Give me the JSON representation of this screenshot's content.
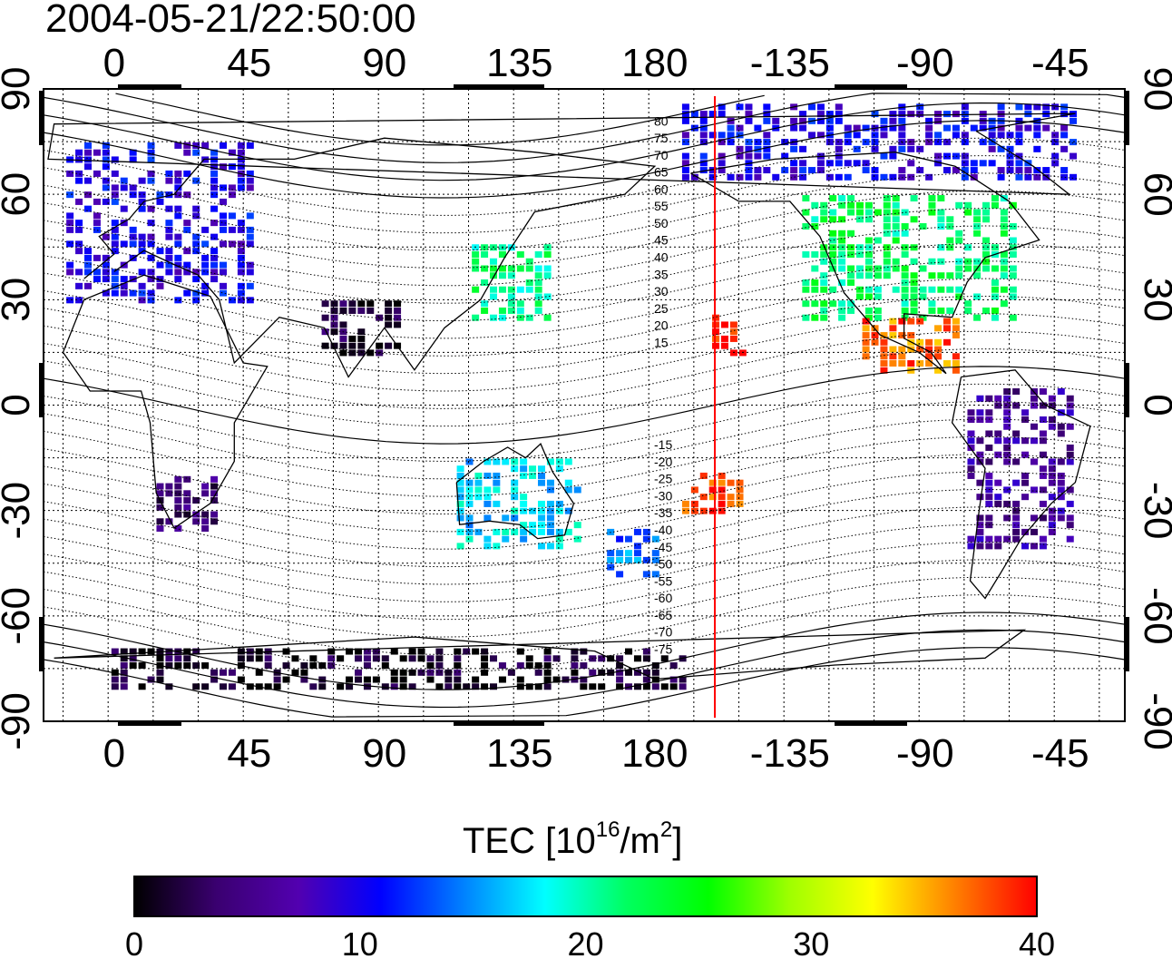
{
  "timestamp": "2004-05-21/22:50:00",
  "longitude_ticks": [
    "0",
    "45",
    "90",
    "135",
    "180",
    "-135",
    "-90",
    "-45"
  ],
  "latitude_ticks": [
    "90",
    "60",
    "30",
    "0",
    "-30",
    "-60",
    "-90"
  ],
  "magnetic_lat_labels": [
    "80",
    "75",
    "70",
    "65",
    "60",
    "55",
    "50",
    "45",
    "40",
    "35",
    "30",
    "25",
    "20",
    "15",
    "-15",
    "-20",
    "-25",
    "-30",
    "-35",
    "-40",
    "-45",
    "-50",
    "-55",
    "-60",
    "-65",
    "-70",
    "-75"
  ],
  "colorbar": {
    "title_prefix": "TEC  [10",
    "title_exp1": "16",
    "title_mid": "/m",
    "title_exp2": "2",
    "title_suffix": "]",
    "ticks": [
      "0",
      "10",
      "20",
      "30",
      "40"
    ],
    "range": [
      0,
      40
    ],
    "stops": [
      "#000000",
      "#3a0070",
      "#5200b0",
      "#0000ff",
      "#0080ff",
      "#00ffff",
      "#00ff60",
      "#00ff00",
      "#a0ff00",
      "#ffff00",
      "#ff8000",
      "#ff0000"
    ]
  },
  "terminator_longitude": -160,
  "colors": {
    "terminator": "#ff0000",
    "map_line": "#000000",
    "grid": "#000000"
  },
  "tec_regions": [
    {
      "name": "europe",
      "lon": [
        -15,
        45
      ],
      "lat": [
        30,
        75
      ],
      "tec": 10
    },
    {
      "name": "north-america",
      "lon": [
        -130,
        -60
      ],
      "lat": [
        25,
        60
      ],
      "tec": 22
    },
    {
      "name": "central-america",
      "lon": [
        -110,
        -80
      ],
      "lat": [
        10,
        25
      ],
      "tec": 37
    },
    {
      "name": "south-america",
      "lon": [
        -75,
        -40
      ],
      "lat": [
        -40,
        5
      ],
      "tec": 6
    },
    {
      "name": "east-asia",
      "lon": [
        120,
        145
      ],
      "lat": [
        25,
        45
      ],
      "tec": 21
    },
    {
      "name": "australia",
      "lon": [
        115,
        155
      ],
      "lat": [
        -40,
        -15
      ],
      "tec": 17
    },
    {
      "name": "hawaii",
      "lon": [
        -160,
        -150
      ],
      "lat": [
        15,
        25
      ],
      "tec": 40
    },
    {
      "name": "india",
      "lon": [
        70,
        95
      ],
      "lat": [
        15,
        30
      ],
      "tec": 2
    },
    {
      "name": "africa-south",
      "lon": [
        15,
        35
      ],
      "lat": [
        -35,
        -20
      ],
      "tec": 4
    },
    {
      "name": "antarctica",
      "lon": [
        0,
        190
      ],
      "lat": [
        -80,
        -70
      ],
      "tec": 1
    },
    {
      "name": "arctic-north-america",
      "lon": [
        -170,
        -40
      ],
      "lat": [
        65,
        85
      ],
      "tec": 10
    },
    {
      "name": "new-zealand",
      "lon": [
        165,
        180
      ],
      "lat": [
        -48,
        -35
      ],
      "tec": 14
    },
    {
      "name": "south-pacific",
      "lon": [
        -170,
        -150
      ],
      "lat": [
        -30,
        -20
      ],
      "tec": 38
    }
  ]
}
